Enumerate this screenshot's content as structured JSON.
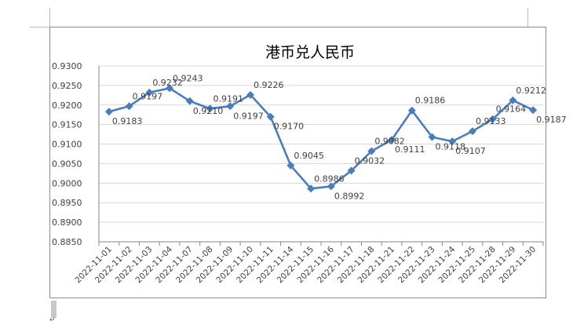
{
  "chart_data": {
    "type": "line",
    "title": "港币兑人民币",
    "categories": [
      "2022-11-01",
      "2022-11-02",
      "2022-11-03",
      "2022-11-04",
      "2022-11-07",
      "2022-11-08",
      "2022-11-09",
      "2022-11-10",
      "2022-11-11",
      "2022-11-14",
      "2022-11-15",
      "2022-11-16",
      "2022-11-17",
      "2022-11-18",
      "2022-11-21",
      "2022-11-22",
      "2022-11-23",
      "2022-11-24",
      "2022-11-25",
      "2022-11-28",
      "2022-11-29",
      "2022-11-30"
    ],
    "values": [
      0.9183,
      0.9197,
      0.9232,
      0.9243,
      0.921,
      0.9191,
      0.9197,
      0.9226,
      0.917,
      0.9045,
      0.8986,
      0.8992,
      0.9032,
      0.9082,
      0.9111,
      0.9186,
      0.9118,
      0.9107,
      0.9133,
      0.9164,
      0.9212,
      0.9187
    ],
    "data_labels": [
      "0.9183",
      "0.9197",
      "0.9232",
      "0.9243",
      "0.9210",
      "0.9191",
      "0.9197",
      "0.9226",
      "0.9170",
      "0.9045",
      "0.8986",
      "0.8992",
      "0.9032",
      "0.9082",
      "0.9111",
      "0.9186",
      "0.9118",
      "0.9107",
      "0.9133",
      "0.9164",
      "0.9212",
      "0.9187"
    ],
    "ylim": [
      0.885,
      0.93
    ],
    "yticks": [
      "0.9300",
      "0.9250",
      "0.9200",
      "0.9150",
      "0.9100",
      "0.9050",
      "0.9000",
      "0.8950",
      "0.8900",
      "0.8850"
    ],
    "ytick_values": [
      0.93,
      0.925,
      0.92,
      0.915,
      0.91,
      0.905,
      0.9,
      0.895,
      0.89,
      0.885
    ],
    "grid": true,
    "legend": "none",
    "colors": {
      "series": "#4a7ebb",
      "grid": "#d9d9d9",
      "axis": "#868686",
      "text": "#404040"
    }
  }
}
